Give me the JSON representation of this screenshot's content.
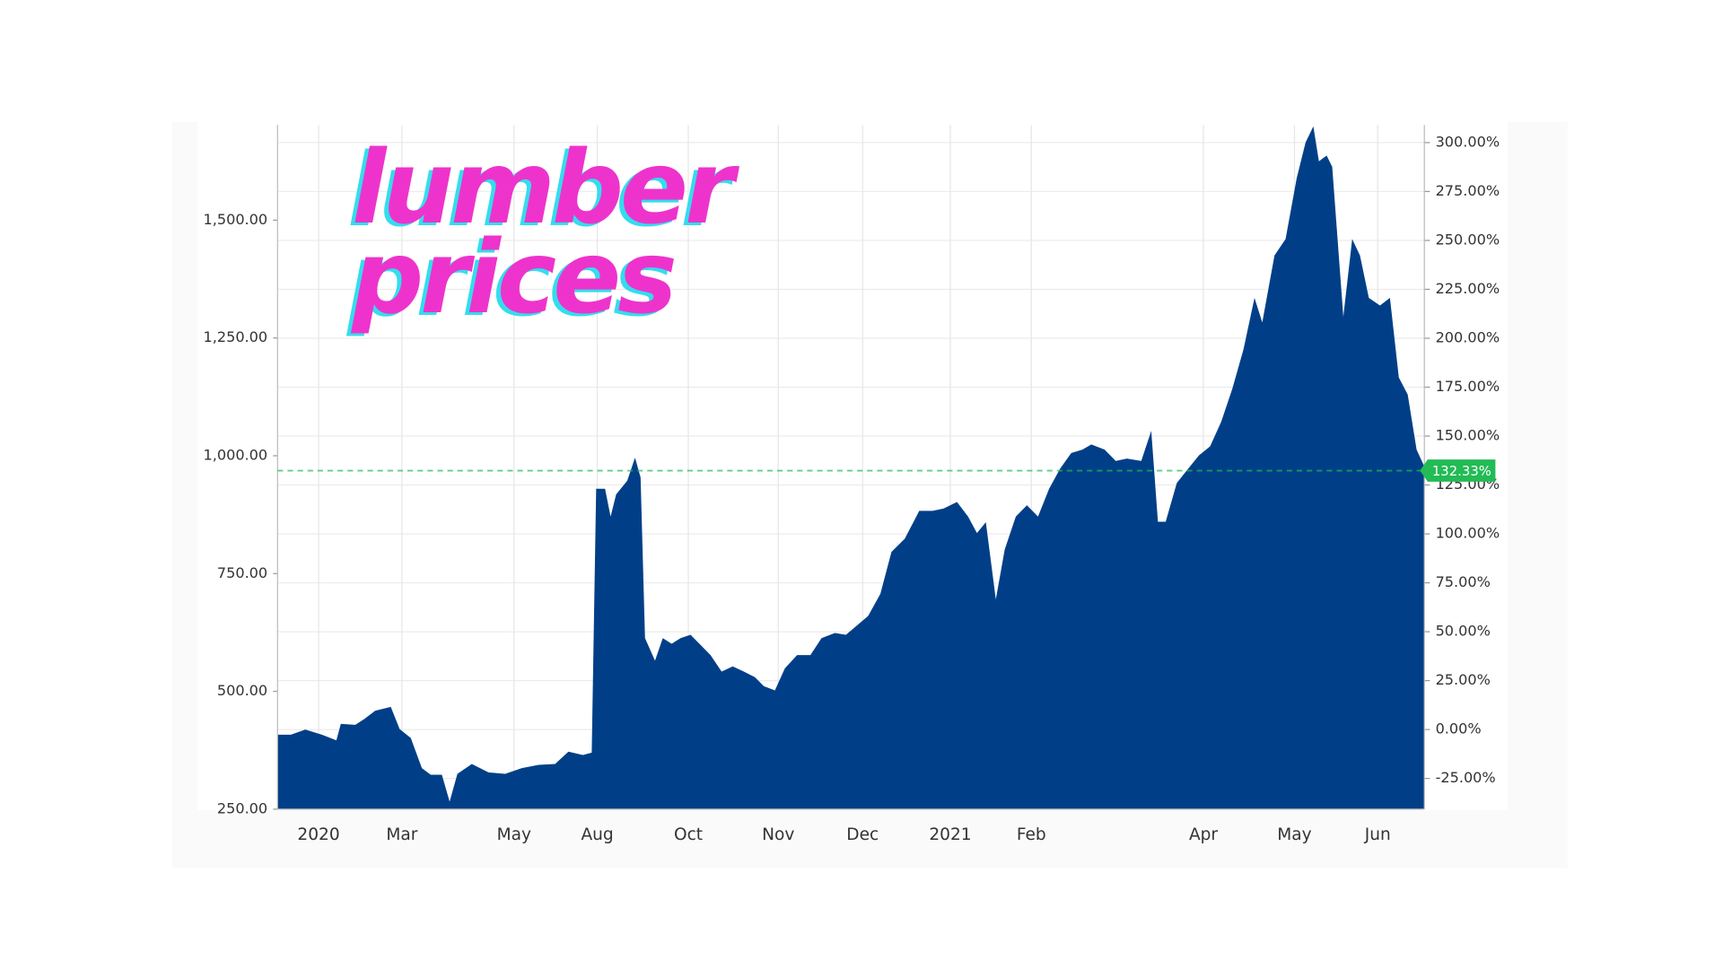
{
  "chart_data": {
    "type": "area",
    "title": "lumber prices",
    "x": [
      0,
      1.2,
      2.5,
      4,
      5.3,
      5.7,
      7,
      7.8,
      8.8,
      10.2,
      11,
      12,
      13,
      13.8,
      14.8,
      15.5,
      16.2,
      17.5,
      19,
      20.5,
      22,
      23.5,
      25,
      26.2,
      27.5,
      28.3,
      28.7,
      29.5,
      30,
      30.5,
      31.5,
      32.2,
      32.7,
      33.1,
      34,
      34.7,
      35.5,
      36.3,
      37.2,
      38,
      39,
      40,
      41,
      42,
      43,
      43.8,
      44.8,
      45.7,
      46.8,
      48,
      49,
      50.2,
      51.2,
      52,
      53.2,
      54.3,
      55.3,
      56.5,
      57.8,
      59,
      60,
      61.2,
      62.2,
      63,
      63.8,
      64.7,
      65.5,
      66.5,
      67.5,
      68.5,
      69.5,
      70.5,
      71.5,
      72.5,
      73.3,
      74.5,
      75.5,
      76.5,
      77.8,
      78.7,
      79.3,
      80,
      81,
      81.8,
      83,
      84,
      85,
      86,
      87,
      88,
      88.7,
      89.8,
      90.8,
      91.8,
      92.6,
      93.3,
      93.8,
      94.5,
      95,
      96,
      96.8,
      97.5,
      98.3,
      99.3,
      100.2,
      101,
      101.8,
      102.6,
      103.3
    ],
    "series": [
      {
        "name": "Lumber",
        "color": "#003f87",
        "values": [
          408,
          408,
          419,
          408,
          396,
          431,
          429,
          441,
          459,
          467,
          420,
          401,
          337,
          323,
          323,
          266,
          325,
          346,
          328,
          325,
          337,
          344,
          346,
          372,
          365,
          370,
          930,
          930,
          871,
          918,
          947,
          996,
          954,
          613,
          565,
          613,
          601,
          613,
          620,
          601,
          577,
          542,
          553,
          542,
          530,
          511,
          502,
          549,
          577,
          577,
          613,
          624,
          620,
          636,
          660,
          707,
          796,
          824,
          883,
          883,
          888,
          902,
          871,
          836,
          859,
          695,
          801,
          871,
          895,
          871,
          930,
          973,
          1006,
          1013,
          1024,
          1013,
          989,
          994,
          989,
          1053,
          860,
          860,
          942,
          966,
          1001,
          1020,
          1072,
          1142,
          1225,
          1335,
          1283,
          1425,
          1460,
          1589,
          1665,
          1699,
          1625,
          1637,
          1613,
          1295,
          1460,
          1425,
          1335,
          1319,
          1335,
          1166,
          1130,
          1013,
          977
        ]
      }
    ],
    "xlim": [
      0,
      103.3
    ],
    "xticks": [
      {
        "value": 3.7,
        "label": "2020"
      },
      {
        "value": 11.2,
        "label": "Mar"
      },
      {
        "value": 21.3,
        "label": "May"
      },
      {
        "value": 28.8,
        "label": "Aug"
      },
      {
        "value": 37,
        "label": "Oct"
      },
      {
        "value": 45.1,
        "label": "Nov"
      },
      {
        "value": 52.7,
        "label": "Dec"
      },
      {
        "value": 60.6,
        "label": "2021"
      },
      {
        "value": 67.9,
        "label": "Feb"
      },
      {
        "value": 83.4,
        "label": "Apr"
      },
      {
        "value": 91.6,
        "label": "May"
      },
      {
        "value": 99.1,
        "label": "Jun"
      }
    ],
    "ylim": [
      250,
      1702
    ],
    "yticks": [
      {
        "value": 250,
        "label": "250.00"
      },
      {
        "value": 500,
        "label": "500.00"
      },
      {
        "value": 750,
        "label": "750.00"
      },
      {
        "value": 1000,
        "label": "1,000.00"
      },
      {
        "value": 1250,
        "label": "1,250.00"
      },
      {
        "value": 1500,
        "label": "1,500.00"
      }
    ],
    "y2lim": [
      -40.7,
      309
    ],
    "y2ticks": [
      {
        "value": -25,
        "label": "-25.00%"
      },
      {
        "value": 0,
        "label": "0.00%"
      },
      {
        "value": 25,
        "label": "25.00%"
      },
      {
        "value": 50,
        "label": "50.00%"
      },
      {
        "value": 75,
        "label": "75.00%"
      },
      {
        "value": 100,
        "label": "100.00%"
      },
      {
        "value": 125,
        "label": "125.00%"
      },
      {
        "value": 150,
        "label": "150.00%"
      },
      {
        "value": 175,
        "label": "175.00%"
      },
      {
        "value": 200,
        "label": "200.00%"
      },
      {
        "value": 225,
        "label": "225.00%"
      },
      {
        "value": 250,
        "label": "250.00%"
      },
      {
        "value": 275,
        "label": "275.00%"
      },
      {
        "value": 300,
        "label": "300.00%"
      }
    ],
    "reference_line": {
      "value": 132.33,
      "label": "132.33%",
      "axis": "y2",
      "color": "#22bb55"
    },
    "grid": true
  }
}
